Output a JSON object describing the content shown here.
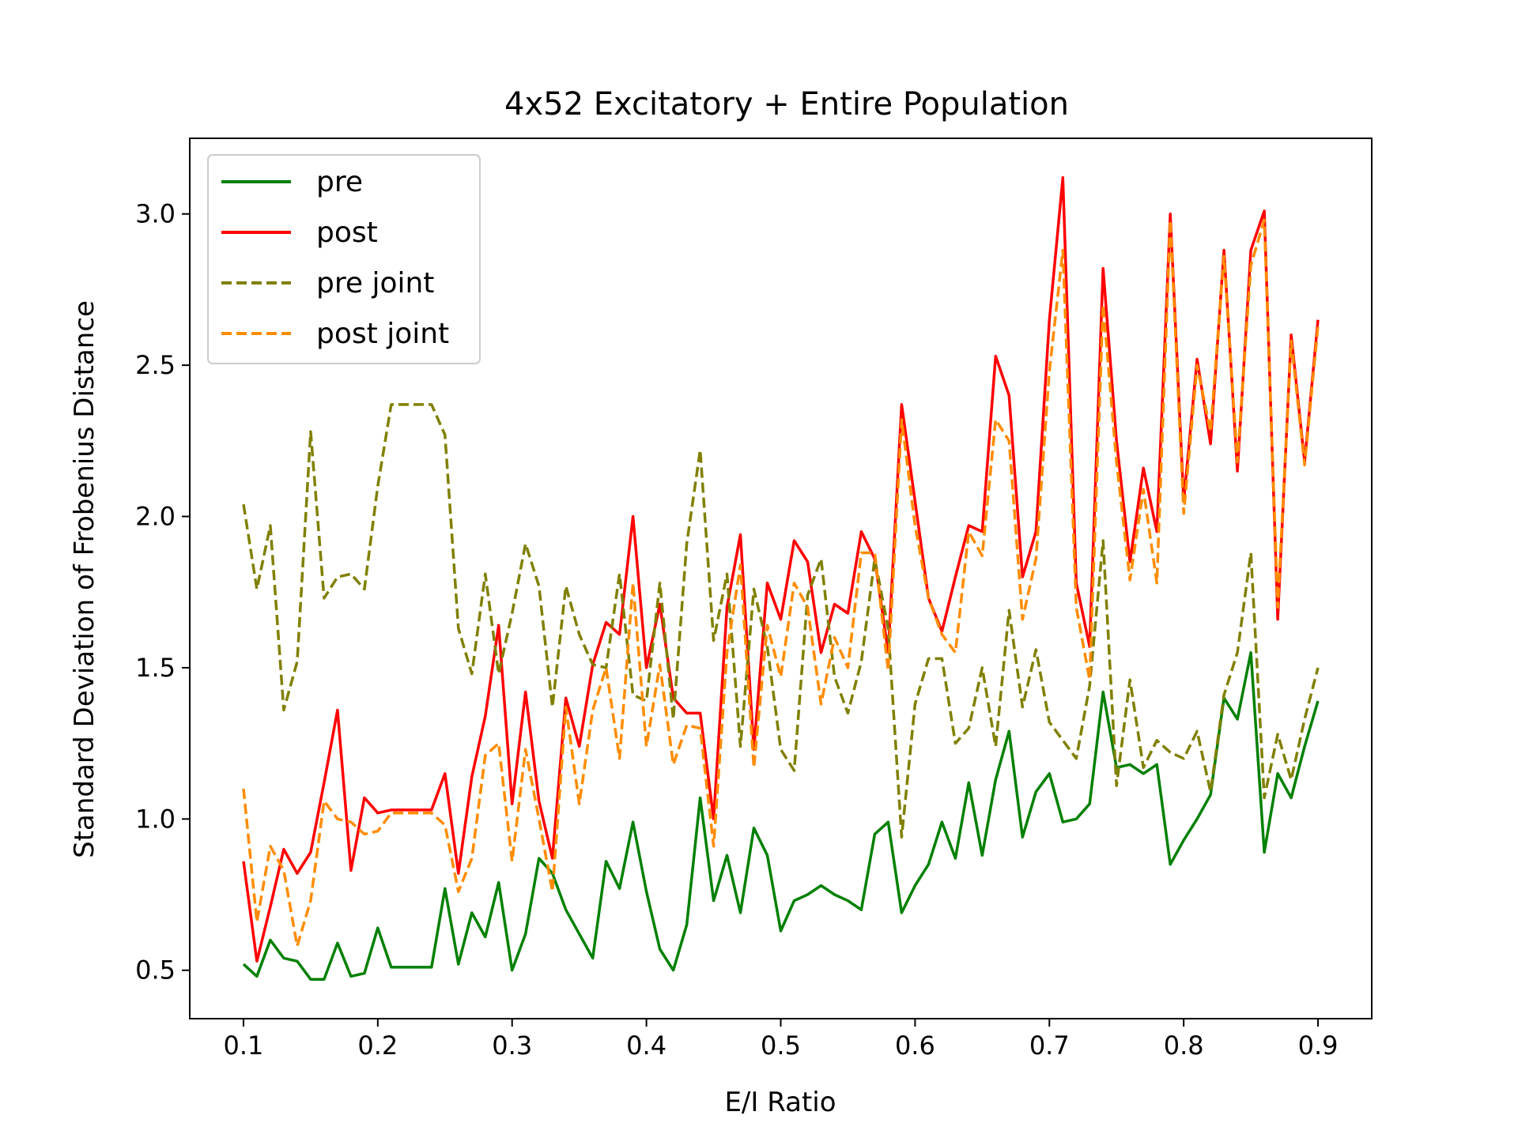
{
  "chart_data": {
    "type": "line",
    "title": "4x52 Excitatory + Entire Population",
    "xlabel": "E/I Ratio",
    "ylabel": "Standard Deviation of Frobenius Distance",
    "xlim": [
      0.06,
      0.94
    ],
    "ylim": [
      0.34,
      3.25
    ],
    "xticks": [
      0.1,
      0.2,
      0.3,
      0.4,
      0.5,
      0.6,
      0.7,
      0.8,
      0.9
    ],
    "xtick_labels": [
      "0.1",
      "0.2",
      "0.3",
      "0.4",
      "0.5",
      "0.6",
      "0.7",
      "0.8",
      "0.9"
    ],
    "yticks": [
      0.5,
      1.0,
      1.5,
      2.0,
      2.5,
      3.0
    ],
    "ytick_labels": [
      "0.5",
      "1.0",
      "1.5",
      "2.0",
      "2.5",
      "3.0"
    ],
    "grid": false,
    "legend_position": "top-left",
    "x": [
      0.1,
      0.11,
      0.12,
      0.13,
      0.14,
      0.15,
      0.16,
      0.17,
      0.18,
      0.19,
      0.2,
      0.21,
      0.22,
      0.23,
      0.24,
      0.25,
      0.26,
      0.27,
      0.28,
      0.29,
      0.3,
      0.31,
      0.32,
      0.33,
      0.34,
      0.35,
      0.36,
      0.37,
      0.38,
      0.39,
      0.4,
      0.41,
      0.42,
      0.43,
      0.44,
      0.45,
      0.46,
      0.47,
      0.48,
      0.49,
      0.5,
      0.51,
      0.52,
      0.53,
      0.54,
      0.55,
      0.56,
      0.57,
      0.58,
      0.59,
      0.6,
      0.61,
      0.62,
      0.63,
      0.64,
      0.65,
      0.66,
      0.67,
      0.68,
      0.69,
      0.7,
      0.71,
      0.72,
      0.73,
      0.74,
      0.75,
      0.76,
      0.77,
      0.78,
      0.79,
      0.8,
      0.81,
      0.82,
      0.83,
      0.84,
      0.85,
      0.86,
      0.87,
      0.88,
      0.89,
      0.9
    ],
    "series": [
      {
        "name": "pre",
        "color": "#008000",
        "dash": false,
        "values": [
          0.52,
          0.48,
          0.6,
          0.54,
          0.53,
          0.47,
          0.47,
          0.59,
          0.48,
          0.49,
          0.64,
          0.51,
          0.51,
          0.51,
          0.51,
          0.77,
          0.52,
          0.69,
          0.61,
          0.79,
          0.5,
          0.62,
          0.87,
          0.82,
          0.7,
          0.62,
          0.54,
          0.86,
          0.77,
          0.99,
          0.76,
          0.57,
          0.5,
          0.65,
          1.07,
          0.73,
          0.88,
          0.69,
          0.97,
          0.88,
          0.63,
          0.73,
          0.75,
          0.78,
          0.75,
          0.73,
          0.7,
          0.95,
          0.99,
          0.69,
          0.78,
          0.85,
          0.99,
          0.87,
          1.12,
          0.88,
          1.13,
          1.29,
          0.94,
          1.09,
          1.15,
          0.99,
          1.0,
          1.05,
          1.42,
          1.17,
          1.18,
          1.15,
          1.18,
          0.85,
          0.93,
          1.0,
          1.08,
          1.4,
          1.33,
          1.55,
          0.89,
          1.15,
          1.07,
          1.24,
          1.39
        ]
      },
      {
        "name": "post",
        "color": "#ff0000",
        "dash": false,
        "values": [
          0.86,
          0.53,
          0.71,
          0.9,
          0.82,
          0.89,
          1.12,
          1.36,
          0.83,
          1.07,
          1.02,
          1.03,
          1.03,
          1.03,
          1.03,
          1.15,
          0.82,
          1.14,
          1.34,
          1.64,
          1.05,
          1.42,
          1.06,
          0.87,
          1.4,
          1.24,
          1.51,
          1.65,
          1.61,
          2.0,
          1.5,
          1.71,
          1.4,
          1.35,
          1.35,
          1.0,
          1.7,
          1.94,
          1.23,
          1.78,
          1.66,
          1.92,
          1.85,
          1.55,
          1.71,
          1.68,
          1.95,
          1.86,
          1.55,
          2.37,
          2.05,
          1.73,
          1.62,
          1.8,
          1.97,
          1.95,
          2.53,
          2.4,
          1.8,
          1.95,
          2.65,
          3.12,
          1.78,
          1.57,
          2.82,
          2.25,
          1.85,
          2.16,
          1.95,
          3.0,
          2.05,
          2.52,
          2.24,
          2.88,
          2.15,
          2.88,
          3.01,
          1.66,
          2.6,
          2.18,
          2.65
        ]
      },
      {
        "name": "pre joint",
        "color": "#808000",
        "dash": true,
        "values": [
          2.04,
          1.76,
          1.97,
          1.36,
          1.52,
          2.28,
          1.73,
          1.8,
          1.81,
          1.76,
          2.1,
          2.37,
          2.37,
          2.37,
          2.37,
          2.27,
          1.63,
          1.48,
          1.81,
          1.48,
          1.68,
          1.91,
          1.77,
          1.37,
          1.77,
          1.61,
          1.51,
          1.5,
          1.81,
          1.41,
          1.39,
          1.78,
          1.33,
          1.91,
          2.22,
          1.59,
          1.81,
          1.24,
          1.76,
          1.57,
          1.23,
          1.16,
          1.74,
          1.86,
          1.47,
          1.35,
          1.52,
          1.86,
          1.63,
          0.94,
          1.38,
          1.53,
          1.53,
          1.25,
          1.3,
          1.5,
          1.24,
          1.69,
          1.37,
          1.56,
          1.32,
          1.26,
          1.2,
          1.44,
          1.92,
          1.11,
          1.46,
          1.17,
          1.26,
          1.22,
          1.2,
          1.29,
          1.09,
          1.41,
          1.55,
          1.88,
          1.07,
          1.28,
          1.13,
          1.33,
          1.5
        ]
      },
      {
        "name": "post joint",
        "color": "#ff8c00",
        "dash": true,
        "values": [
          1.1,
          0.66,
          0.91,
          0.83,
          0.58,
          0.73,
          1.06,
          1.0,
          0.99,
          0.95,
          0.96,
          1.02,
          1.02,
          1.02,
          1.02,
          0.98,
          0.76,
          0.87,
          1.21,
          1.25,
          0.86,
          1.23,
          1.0,
          0.76,
          1.37,
          1.05,
          1.36,
          1.5,
          1.2,
          1.78,
          1.24,
          1.51,
          1.18,
          1.31,
          1.3,
          0.91,
          1.55,
          1.84,
          1.17,
          1.64,
          1.47,
          1.78,
          1.7,
          1.38,
          1.6,
          1.5,
          1.88,
          1.88,
          1.49,
          2.32,
          1.97,
          1.73,
          1.61,
          1.55,
          1.95,
          1.87,
          2.32,
          2.25,
          1.66,
          1.86,
          2.48,
          2.88,
          1.7,
          1.46,
          2.7,
          2.18,
          1.79,
          2.09,
          1.78,
          2.98,
          2.01,
          2.5,
          2.28,
          2.86,
          2.18,
          2.83,
          2.98,
          1.7,
          2.58,
          2.17,
          2.63
        ]
      }
    ]
  }
}
